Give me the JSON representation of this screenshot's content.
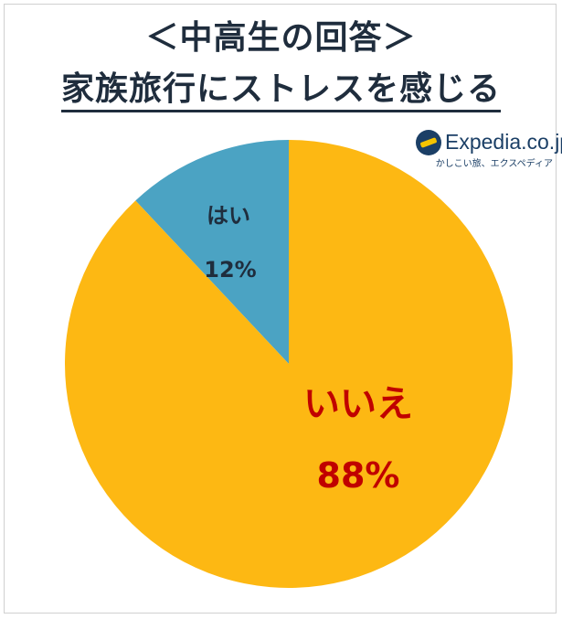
{
  "title": {
    "line1": "＜中高生の回答＞",
    "line2": "家族旅行にストレスを感じる"
  },
  "logo": {
    "brand": "Expedia.co.jp",
    "tagline": "かしこい旅、エクスペディア",
    "icon": "expedia-globe-plane-icon"
  },
  "colors": {
    "yes": "#4BA3C3",
    "no": "#FDB813",
    "yes_label": "#1f2d3d",
    "no_label": "#c00000"
  },
  "chart_data": {
    "type": "pie",
    "title": "家族旅行にストレスを感じる",
    "slices": [
      {
        "label": "はい",
        "value": 12,
        "value_label": "12%"
      },
      {
        "label": "いいえ",
        "value": 88,
        "value_label": "88%"
      }
    ]
  }
}
